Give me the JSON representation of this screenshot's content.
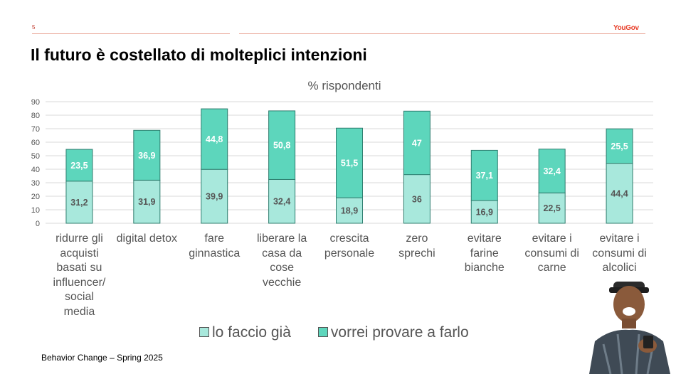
{
  "header": {
    "page_number": "5",
    "brand": "YouGov"
  },
  "title": "Il futuro è costellato di molteplici intenzioni",
  "footer": "Behavior Change – Spring 2025",
  "colors": {
    "series1": "#a8e8dc",
    "series2": "#5dd6bc",
    "border": "#2e7d6e",
    "grid": "#d9d9d9"
  },
  "chart_data": {
    "type": "bar",
    "stacked": true,
    "title": "% rispondenti",
    "categories": [
      "ridurre gli acquisti basati su influencer/ social media",
      "digital detox",
      "fare ginnastica",
      "liberare la casa da cose vecchie",
      "crescita personale",
      "zero sprechi",
      "evitare farine bianche",
      "evitare i consumi di carne",
      "evitare i consumi di alcolici"
    ],
    "category_lines": [
      "ridurre gli\nacquisti\nbasati su\ninfluencer/\nsocial\nmedia",
      "digital detox",
      "fare\nginnastica",
      "liberare la\ncasa da\ncose\nvecchie",
      "crescita\npersonale",
      "zero\nsprechi",
      "evitare\nfarine\nbianche",
      "evitare i\nconsumi di\ncarne",
      "evitare i\nconsumi di\nalcolici"
    ],
    "series": [
      {
        "name": "lo faccio già",
        "values": [
          31.2,
          31.9,
          39.9,
          32.4,
          18.9,
          36,
          16.9,
          22.5,
          44.4
        ],
        "labels": [
          "31,2",
          "31,9",
          "39,9",
          "32,4",
          "18,9",
          "36",
          "16,9",
          "22,5",
          "44,4"
        ]
      },
      {
        "name": "vorrei provare a farlo",
        "values": [
          23.5,
          36.9,
          44.8,
          50.8,
          51.5,
          47,
          37.1,
          32.4,
          25.5
        ],
        "labels": [
          "23,5",
          "36,9",
          "44,8",
          "50,8",
          "51,5",
          "47",
          "37,1",
          "32,4",
          "25,5"
        ]
      }
    ],
    "yticks": [
      "0",
      "10",
      "20",
      "30",
      "40",
      "50",
      "60",
      "70",
      "80",
      "90"
    ],
    "ylim": [
      0,
      90
    ],
    "grid": true,
    "legend": "bottom"
  }
}
